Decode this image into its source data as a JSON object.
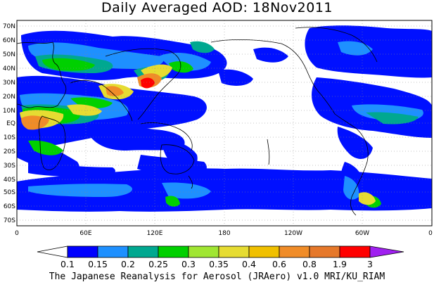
{
  "title": "Daily Averaged AOD: 18Nov2011",
  "credit": "The Japanese Reanalysis for Aerosol (JRAero) v1.0 MRI/KU_RIAM",
  "lat_labels": [
    "70N",
    "60N",
    "50N",
    "40N",
    "30N",
    "20N",
    "10N",
    "EQ",
    "10S",
    "20S",
    "30S",
    "40S",
    "50S",
    "60S",
    "70S"
  ],
  "lon_labels": [
    "0",
    "60E",
    "120E",
    "180",
    "120W",
    "60W",
    "0"
  ],
  "colorbar": {
    "labels": [
      "0.1",
      "0.15",
      "0.2",
      "0.25",
      "0.3",
      "0.35",
      "0.4",
      "0.6",
      "0.8",
      "1.9",
      "3"
    ],
    "colors": [
      "#ffffff",
      "#0000ff",
      "#1e90ff",
      "#00a890",
      "#00d000",
      "#a0e632",
      "#e6dc32",
      "#f0c000",
      "#f08c28",
      "#e6782a",
      "#ff0000",
      "#a020f0"
    ]
  }
}
